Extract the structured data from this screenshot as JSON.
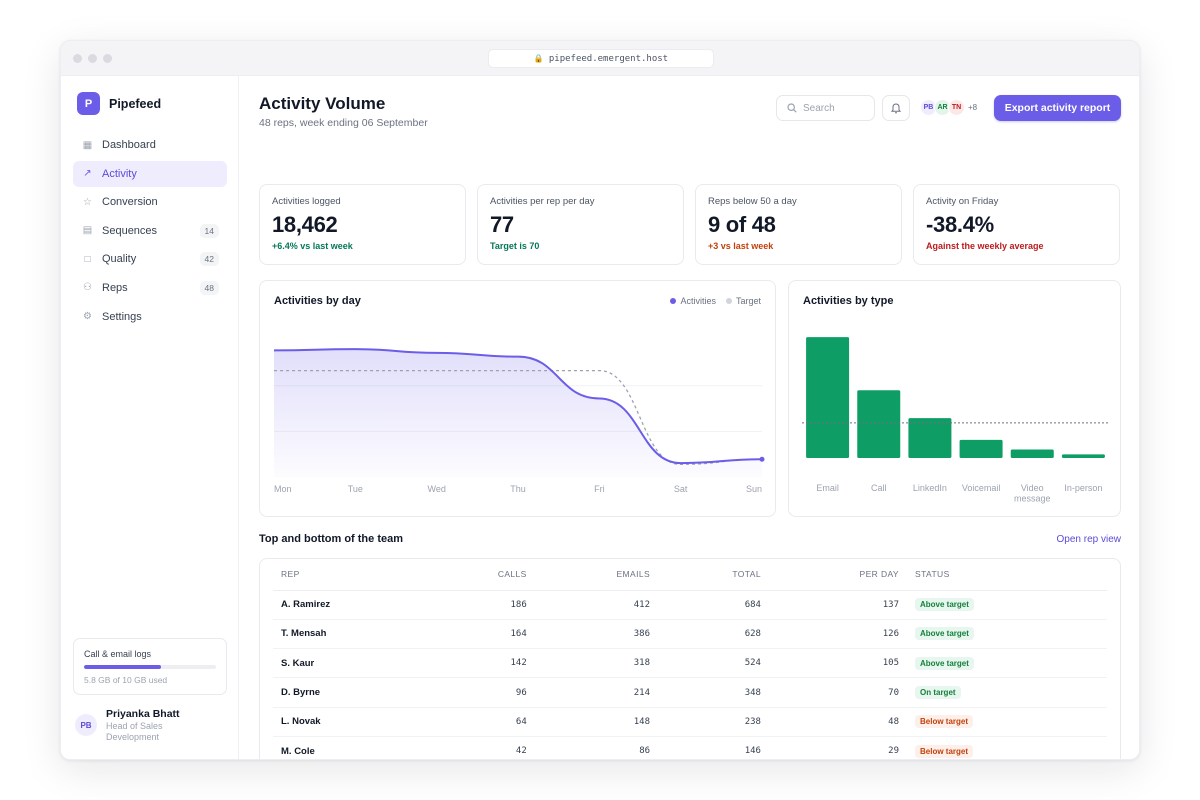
{
  "browser": {
    "url": "pipefeed.emergent.host"
  },
  "brand": {
    "logo_letter": "P",
    "name": "Pipefeed"
  },
  "sidebar": {
    "items": [
      {
        "label": "Dashboard",
        "icon": "grid-icon",
        "count": ""
      },
      {
        "label": "Activity",
        "icon": "trend-icon",
        "count": "",
        "active": true
      },
      {
        "label": "Conversion",
        "icon": "star-icon",
        "count": ""
      },
      {
        "label": "Sequences",
        "icon": "sequence-icon",
        "count": "14"
      },
      {
        "label": "Quality",
        "icon": "document-icon",
        "count": "42"
      },
      {
        "label": "Reps",
        "icon": "users-icon",
        "count": "48"
      },
      {
        "label": "Settings",
        "icon": "gear-icon",
        "count": ""
      }
    ],
    "storage": {
      "title": "Call & email logs",
      "used_fraction": 0.58,
      "text": "5.8 GB of 10 GB used"
    },
    "user": {
      "initials": "PB",
      "name": "Priyanka Bhatt",
      "role": "Head of Sales Development"
    }
  },
  "header": {
    "title": "Activity Volume",
    "subtitle": "48 reps, week ending 06 September",
    "search_placeholder": "Search",
    "avatars": [
      {
        "initials": "PB",
        "bg": "#efedfd",
        "fg": "#5b4bd8"
      },
      {
        "initials": "AR",
        "bg": "#e3f4ea",
        "fg": "#15803d"
      },
      {
        "initials": "TN",
        "bg": "#fde8e8",
        "fg": "#b91c1c"
      }
    ],
    "avatars_more": "+8",
    "export_label": "Export activity report"
  },
  "kpis": [
    {
      "label": "Activities logged",
      "value": "18,462",
      "note": "+6.4% vs last week",
      "note_color": "#047857"
    },
    {
      "label": "Activities per rep per day",
      "value": "77",
      "note": "Target is 70",
      "note_color": "#047857"
    },
    {
      "label": "Reps below 50 a day",
      "value": "9 of 48",
      "note": "+3 vs last week",
      "note_color": "#c2410c"
    },
    {
      "label": "Activity on Friday",
      "value": "-38.4%",
      "note": "Against the weekly average",
      "note_color": "#b91c1c"
    }
  ],
  "colors": {
    "accent": "#6b5de8",
    "bar_green": "#0f9d66"
  },
  "chart_data": [
    {
      "type": "area",
      "title": "Activities by day",
      "categories": [
        "Mon",
        "Tue",
        "Wed",
        "Thu",
        "Fri",
        "Sat",
        "Sun"
      ],
      "series": [
        {
          "name": "Activities",
          "values": [
            100,
            101,
            98,
            95,
            62,
            11,
            14
          ]
        },
        {
          "name": "Target",
          "values": [
            84,
            84,
            84,
            84,
            84,
            10,
            14
          ]
        }
      ],
      "ylim": [
        0,
        120
      ],
      "legend": "top-right",
      "grid": true
    },
    {
      "type": "bar",
      "title": "Activities by type",
      "categories": [
        "Email",
        "Call",
        "LinkedIn",
        "Voicemail",
        "Video message",
        "In-person"
      ],
      "values": [
        100,
        56,
        33,
        15,
        7,
        3
      ],
      "reference_line": 29,
      "ylim": [
        0,
        110
      ]
    }
  ],
  "team": {
    "title": "Top and bottom of the team",
    "link": "Open rep view",
    "columns": [
      "REP",
      "CALLS",
      "EMAILS",
      "TOTAL",
      "PER DAY",
      "STATUS"
    ],
    "rows": [
      {
        "rep": "A. Ramirez",
        "calls": "186",
        "emails": "412",
        "total": "684",
        "per_day": "137",
        "status": "Above target",
        "kind": "above"
      },
      {
        "rep": "T. Mensah",
        "calls": "164",
        "emails": "386",
        "total": "628",
        "per_day": "126",
        "status": "Above target",
        "kind": "above"
      },
      {
        "rep": "S. Kaur",
        "calls": "142",
        "emails": "318",
        "total": "524",
        "per_day": "105",
        "status": "Above target",
        "kind": "above"
      },
      {
        "rep": "D. Byrne",
        "calls": "96",
        "emails": "214",
        "total": "348",
        "per_day": "70",
        "status": "On target",
        "kind": "on"
      },
      {
        "rep": "L. Novak",
        "calls": "64",
        "emails": "148",
        "total": "238",
        "per_day": "48",
        "status": "Below target",
        "kind": "below"
      },
      {
        "rep": "M. Cole",
        "calls": "42",
        "emails": "86",
        "total": "146",
        "per_day": "29",
        "status": "Below target",
        "kind": "below"
      }
    ]
  }
}
